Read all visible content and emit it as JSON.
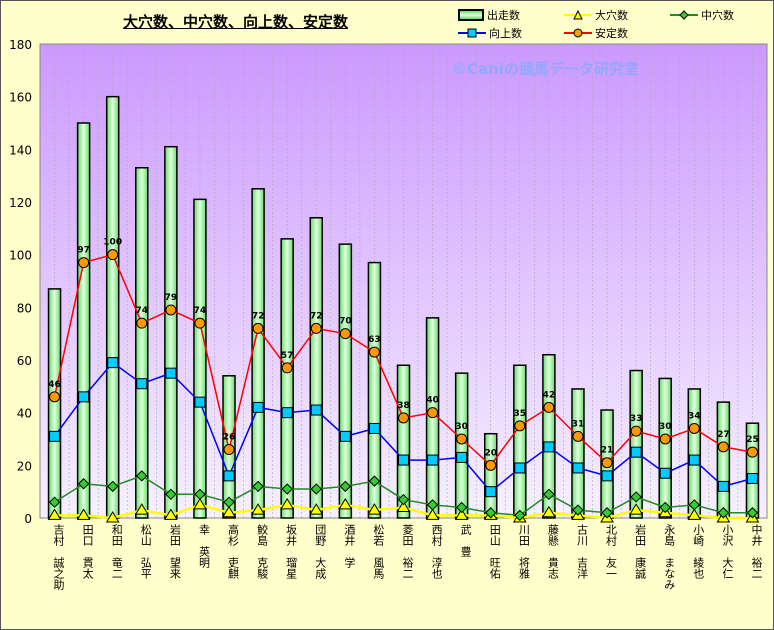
{
  "chart_data": {
    "type": "bar",
    "title": "大穴数、中穴数、向上数、安定数",
    "watermark": "©Caniの競馬データ研究室",
    "ylim": [
      0,
      180
    ],
    "yticks": [
      0,
      20,
      40,
      60,
      80,
      100,
      120,
      140,
      160,
      180
    ],
    "grid": true,
    "legend_position": "top-right",
    "categories": [
      "吉村 誠之助",
      "田口 貫太",
      "和田 竜二",
      "松山 弘平",
      "岩田 望来",
      "幸 英明",
      "高杉 吏麒",
      "鮫島 克駿",
      "坂井 瑠星",
      "団野 大成",
      "酒井 学",
      "松若 風馬",
      "菱田 裕二",
      "西村 淳也",
      "武 豊",
      "田山 旺佑",
      "川田 将雅",
      "藤懸 貴志",
      "古川 吉洋",
      "北村 友一",
      "岩田 康誠",
      "永島 まなみ",
      "小崎 綾也",
      "小沢 大仁",
      "中井 裕二"
    ],
    "series": [
      {
        "name": "出走数",
        "kind": "bar",
        "color": "#99ff99",
        "values": [
          87,
          150,
          160,
          133,
          141,
          121,
          54,
          125,
          106,
          114,
          104,
          97,
          58,
          76,
          55,
          32,
          58,
          62,
          49,
          41,
          56,
          53,
          49,
          44,
          36
        ]
      },
      {
        "name": "大穴数",
        "kind": "line",
        "color": "#ffff00",
        "values": [
          1,
          1,
          0,
          3,
          1,
          5,
          2,
          3,
          5,
          3,
          5,
          3,
          4,
          1,
          1,
          1,
          0,
          2,
          1,
          0,
          3,
          2,
          1,
          0,
          0
        ]
      },
      {
        "name": "中穴数",
        "kind": "line",
        "color": "#228b22",
        "values": [
          6,
          13,
          12,
          16,
          9,
          9,
          6,
          12,
          11,
          11,
          12,
          14,
          7,
          5,
          4,
          2,
          1,
          9,
          3,
          2,
          8,
          4,
          5,
          2,
          2
        ]
      },
      {
        "name": "向上数",
        "kind": "line",
        "color": "#0000ff",
        "values": [
          31,
          46,
          59,
          51,
          55,
          44,
          16,
          42,
          40,
          41,
          31,
          34,
          22,
          22,
          23,
          10,
          19,
          27,
          19,
          16,
          25,
          17,
          22,
          12,
          15
        ]
      },
      {
        "name": "安定数",
        "kind": "line",
        "color": "#ff0000",
        "values": [
          46,
          97,
          100,
          74,
          79,
          74,
          26,
          72,
          57,
          72,
          70,
          63,
          38,
          40,
          30,
          20,
          35,
          42,
          31,
          21,
          33,
          30,
          34,
          27,
          25
        ],
        "labels": true
      }
    ]
  }
}
